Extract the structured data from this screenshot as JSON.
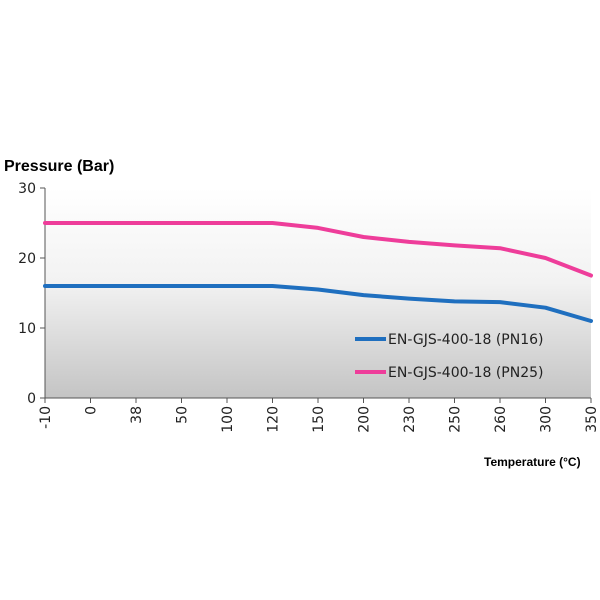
{
  "chart_data": {
    "type": "line",
    "title": "",
    "ylabel": "Pressure (Bar)",
    "xlabel": "Temperature (°C)",
    "categories": [
      "-10",
      "0",
      "38",
      "50",
      "100",
      "120",
      "150",
      "200",
      "230",
      "250",
      "260",
      "300",
      "350"
    ],
    "ylim": [
      0,
      30
    ],
    "yticks": [
      "0",
      "10",
      "20",
      "30"
    ],
    "grid": false,
    "legend_position": "bottom-right",
    "series": [
      {
        "name": "EN-GJS-400-18 (PN16)",
        "color": "#1f6fbf",
        "values": [
          16,
          16,
          16,
          16,
          16,
          16,
          15.5,
          14.7,
          14.2,
          13.8,
          13.7,
          12.9,
          11
        ]
      },
      {
        "name": "EN-GJS-400-18 (PN25)",
        "color": "#ee3d9a",
        "values": [
          25,
          25,
          25,
          25,
          25,
          25,
          24.3,
          23,
          22.3,
          21.8,
          21.4,
          20,
          17.5
        ]
      }
    ]
  }
}
